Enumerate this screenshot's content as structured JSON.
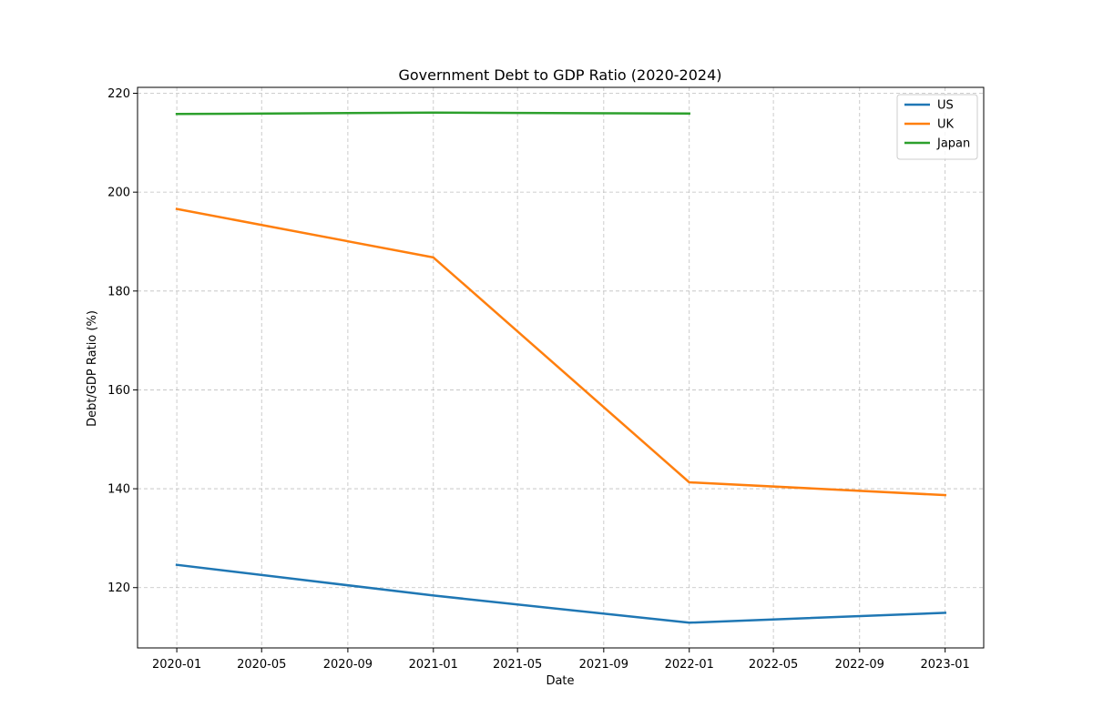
{
  "chart_data": {
    "type": "line",
    "title": "Government Debt to GDP Ratio (2020-2024)",
    "xlabel": "Date",
    "ylabel": "Debt/GDP Ratio (%)",
    "x": [
      "2020-01-01",
      "2021-01-01",
      "2022-01-01",
      "2023-01-01"
    ],
    "x_ticks": [
      "2020-01",
      "2020-05",
      "2020-09",
      "2021-01",
      "2021-05",
      "2021-09",
      "2022-01",
      "2022-05",
      "2022-09",
      "2023-01"
    ],
    "y_ticks": [
      120,
      140,
      160,
      180,
      200,
      220
    ],
    "xlim": [
      "2019-11-06",
      "2023-02-25"
    ],
    "ylim": [
      107.8,
      221.2
    ],
    "grid": true,
    "legend_position": "top-right",
    "series": [
      {
        "name": "US",
        "color": "#1f77b4",
        "values": [
          124.6,
          118.4,
          112.9,
          114.9
        ]
      },
      {
        "name": "UK",
        "color": "#ff7f0e",
        "values": [
          196.6,
          186.8,
          141.3,
          138.7
        ]
      },
      {
        "name": "Japan",
        "color": "#2ca02c",
        "values": [
          215.8,
          216.1,
          215.9,
          null
        ]
      }
    ]
  }
}
